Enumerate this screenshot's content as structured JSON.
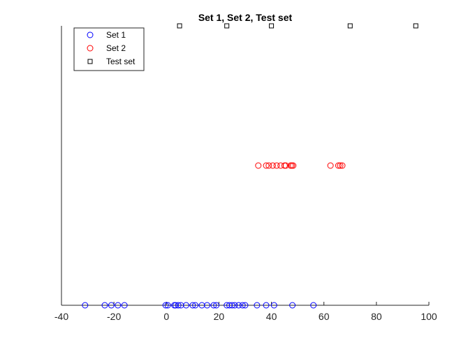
{
  "chart_data": {
    "type": "scatter",
    "title": "Set 1, Set 2, Test set",
    "xlabel": "",
    "ylabel": "",
    "xlim": [
      -40,
      100
    ],
    "ylim": [
      0,
      2
    ],
    "xticks": [
      -40,
      -20,
      0,
      20,
      40,
      60,
      80,
      100
    ],
    "grid": false,
    "legend_position": "top-left",
    "series": [
      {
        "name": "Set 1",
        "marker": "circle",
        "color": "#0000ff",
        "x": [
          -31,
          -23.5,
          -21,
          -18.5,
          -16,
          -0.3,
          0.5,
          3,
          3.5,
          4.5,
          5.5,
          7.5,
          10,
          11,
          13.5,
          15.5,
          18,
          19,
          23,
          24,
          25,
          26,
          27.5,
          29,
          30,
          34.5,
          38,
          41,
          48,
          56
        ],
        "y": [
          0,
          0,
          0,
          0,
          0,
          0,
          0,
          0,
          0,
          0,
          0,
          0,
          0,
          0,
          0,
          0,
          0,
          0,
          0,
          0,
          0,
          0,
          0,
          0,
          0,
          0,
          0,
          0,
          0,
          0
        ]
      },
      {
        "name": "Set 2",
        "marker": "circle",
        "color": "#ff0000",
        "x": [
          35,
          38,
          39,
          40.5,
          42,
          43.5,
          45,
          45.5,
          47.3,
          47.8,
          48.3,
          62.5,
          65.5,
          66.2,
          67
        ],
        "y": [
          1,
          1,
          1,
          1,
          1,
          1,
          1,
          1,
          1,
          1,
          1,
          1,
          1,
          1,
          1
        ]
      },
      {
        "name": "Test set",
        "marker": "square",
        "color": "#000000",
        "x": [
          5,
          23,
          40,
          70,
          95
        ],
        "y": [
          2,
          2,
          2,
          2,
          2
        ]
      }
    ]
  }
}
